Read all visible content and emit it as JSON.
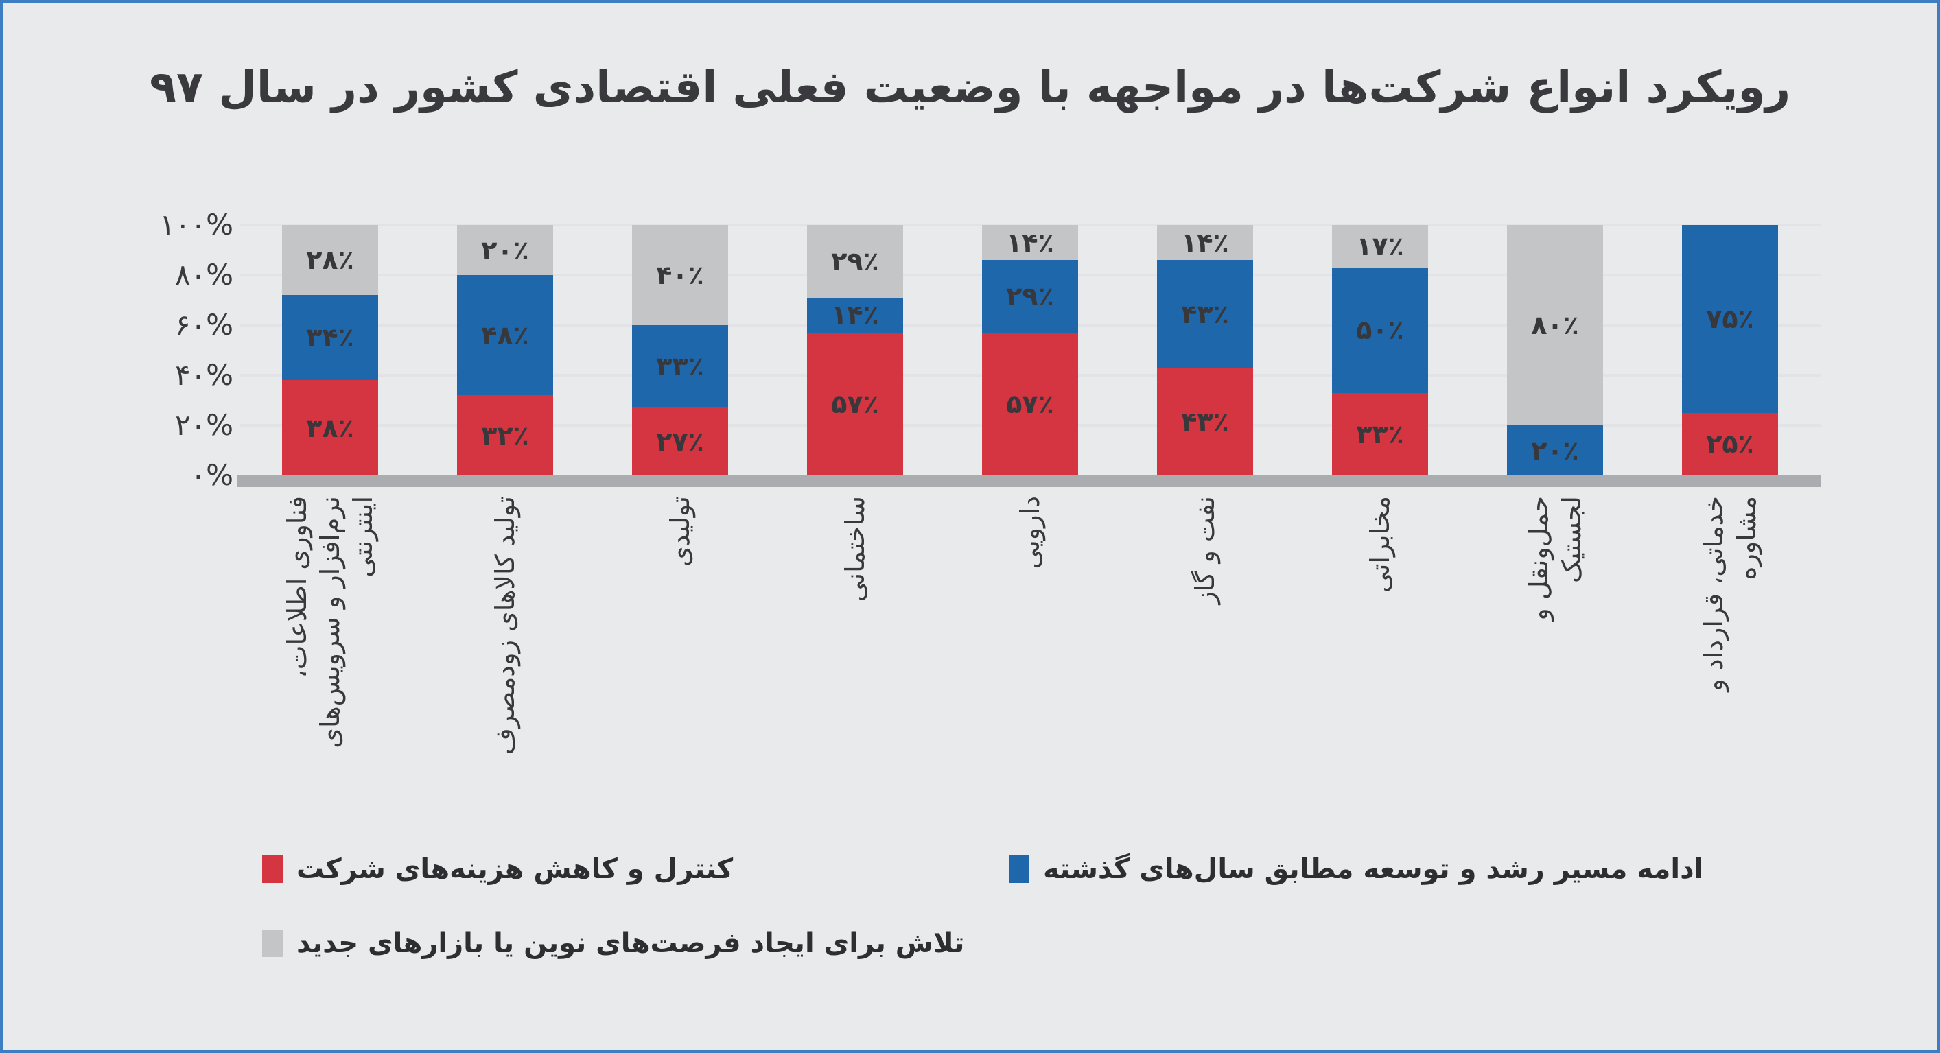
{
  "title": "رویکرد انواع شرکت‌ها در مواجهه با وضعیت فعلی اقتصادی کشور در سال ۹۷",
  "colors": {
    "background": "#e9eaeb",
    "page_border": "#3d7dc2",
    "red_series": "#d53540",
    "blue_series": "#1f67ab",
    "gray_series": "#c4c5c7",
    "axis_baseline": "#aaacaf",
    "text_dark": "#3a3a3e"
  },
  "chart_data": {
    "type": "bar",
    "stacked": true,
    "direction": "rtl",
    "title": "رویکرد انواع شرکت‌ها در مواجهه با وضعیت فعلی اقتصادی کشور در سال ۹۷",
    "xlabel": "",
    "ylabel": "",
    "ylim": [
      0,
      100
    ],
    "grid": true,
    "legend_position": "bottom",
    "y_tick_labels": [
      "۱۰۰%",
      "۸۰%",
      "۶۰%",
      "۴۰%",
      "۲۰%",
      "۰%"
    ],
    "y_tick_values": [
      100,
      80,
      60,
      40,
      20,
      0
    ],
    "categories": [
      "فناوری اطلاعات، نرم‌افزار و سرویس‌های اینترنتی",
      "تولید کالاهای زودمصرف",
      "تولیدی",
      "ساختمانی",
      "دارویی",
      "نفت و گاز",
      "مخابراتی",
      "حمل‌ونقل و لجستیک",
      "خدماتی، قرارداد و مشاوره"
    ],
    "category_lines": [
      [
        "فناوری اطلاعات،",
        "نرم‌افزار و سرویس‌های",
        "اینترنتی"
      ],
      [
        "تولید کالاهای زودمصرف"
      ],
      [
        "تولیدی"
      ],
      [
        "ساختمانی"
      ],
      [
        "دارویی"
      ],
      [
        "نفت و گاز"
      ],
      [
        "مخابراتی"
      ],
      [
        "حمل‌ونقل و",
        "لجستیک"
      ],
      [
        "خدماتی، قرارداد و",
        "مشاوره"
      ]
    ],
    "series": [
      {
        "name": "کنترل و کاهش هزینه‌های شرکت",
        "color": "#d53540",
        "values": [
          38,
          32,
          27,
          57,
          57,
          43,
          33,
          0,
          25
        ],
        "labels": [
          "۳۸٪",
          "۳۲٪",
          "۲۷٪",
          "۵۷٪",
          "۵۷٪",
          "۴۳٪",
          "۳۳٪",
          "",
          "۲۵٪"
        ]
      },
      {
        "name": "ادامه مسیر رشد و توسعه مطابق سال‌های گذشته",
        "color": "#1f67ab",
        "values": [
          34,
          48,
          33,
          14,
          29,
          43,
          50,
          20,
          75
        ],
        "labels": [
          "۳۴٪",
          "۴۸٪",
          "۳۳٪",
          "۱۴٪",
          "۲۹٪",
          "۴۳٪",
          "۵۰٪",
          "۲۰٪",
          "۷۵٪"
        ]
      },
      {
        "name": "تلاش برای ایجاد فرصت‌های نوین یا بازارهای جدید",
        "color": "#c4c5c7",
        "values": [
          28,
          20,
          40,
          29,
          14,
          14,
          17,
          80,
          0
        ],
        "labels": [
          "۲۸٪",
          "۲۰٪",
          "۴۰٪",
          "۲۹٪",
          "۱۴٪",
          "۱۴٪",
          "۱۷٪",
          "۸۰٪",
          ""
        ]
      }
    ]
  }
}
